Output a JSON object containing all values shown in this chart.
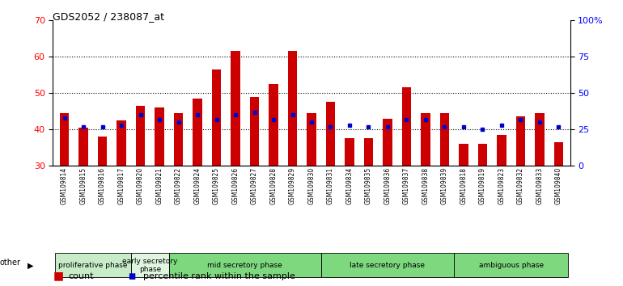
{
  "title": "GDS2052 / 238087_at",
  "samples": [
    "GSM109814",
    "GSM109815",
    "GSM109816",
    "GSM109817",
    "GSM109820",
    "GSM109821",
    "GSM109822",
    "GSM109824",
    "GSM109825",
    "GSM109826",
    "GSM109827",
    "GSM109828",
    "GSM109829",
    "GSM109830",
    "GSM109831",
    "GSM109834",
    "GSM109835",
    "GSM109836",
    "GSM109837",
    "GSM109838",
    "GSM109839",
    "GSM109818",
    "GSM109819",
    "GSM109823",
    "GSM109832",
    "GSM109833",
    "GSM109840"
  ],
  "count": [
    44.5,
    40.5,
    38.0,
    42.5,
    46.5,
    46.0,
    44.5,
    48.5,
    56.5,
    61.5,
    49.0,
    52.5,
    61.5,
    44.5,
    47.5,
    37.5,
    37.5,
    43.0,
    51.5,
    44.5,
    44.5,
    36.0,
    36.0,
    38.5,
    43.5,
    44.5,
    36.5
  ],
  "percentile_right": [
    33,
    27,
    27,
    28,
    35,
    32,
    30,
    35,
    32,
    35,
    37,
    32,
    35,
    30,
    27,
    28,
    27,
    27,
    32,
    32,
    27,
    27,
    25,
    28,
    32,
    30,
    27
  ],
  "phases": [
    {
      "label": "proliferative phase",
      "start": 0,
      "end": 4,
      "color": "#c8ecc8"
    },
    {
      "label": "early secretory\nphase",
      "start": 4,
      "end": 6,
      "color": "#e0f5e0"
    },
    {
      "label": "mid secretory phase",
      "start": 6,
      "end": 14,
      "color": "#7ed87e"
    },
    {
      "label": "late secretory phase",
      "start": 14,
      "end": 21,
      "color": "#7ed87e"
    },
    {
      "label": "ambiguous phase",
      "start": 21,
      "end": 27,
      "color": "#7ed87e"
    }
  ],
  "bar_color": "#cc0000",
  "percentile_color": "#0000cc",
  "ylim_left": [
    30,
    70
  ],
  "ylim_right": [
    0,
    100
  ],
  "yticks_left": [
    30,
    40,
    50,
    60,
    70
  ],
  "yticks_right": [
    0,
    25,
    50,
    75,
    100
  ],
  "ytick_labels_right": [
    "0",
    "25",
    "50",
    "75",
    "100%"
  ],
  "grid_values": [
    40,
    50,
    60
  ],
  "bar_width": 0.5,
  "legend_count": "count",
  "legend_percentile": "percentile rank within the sample"
}
